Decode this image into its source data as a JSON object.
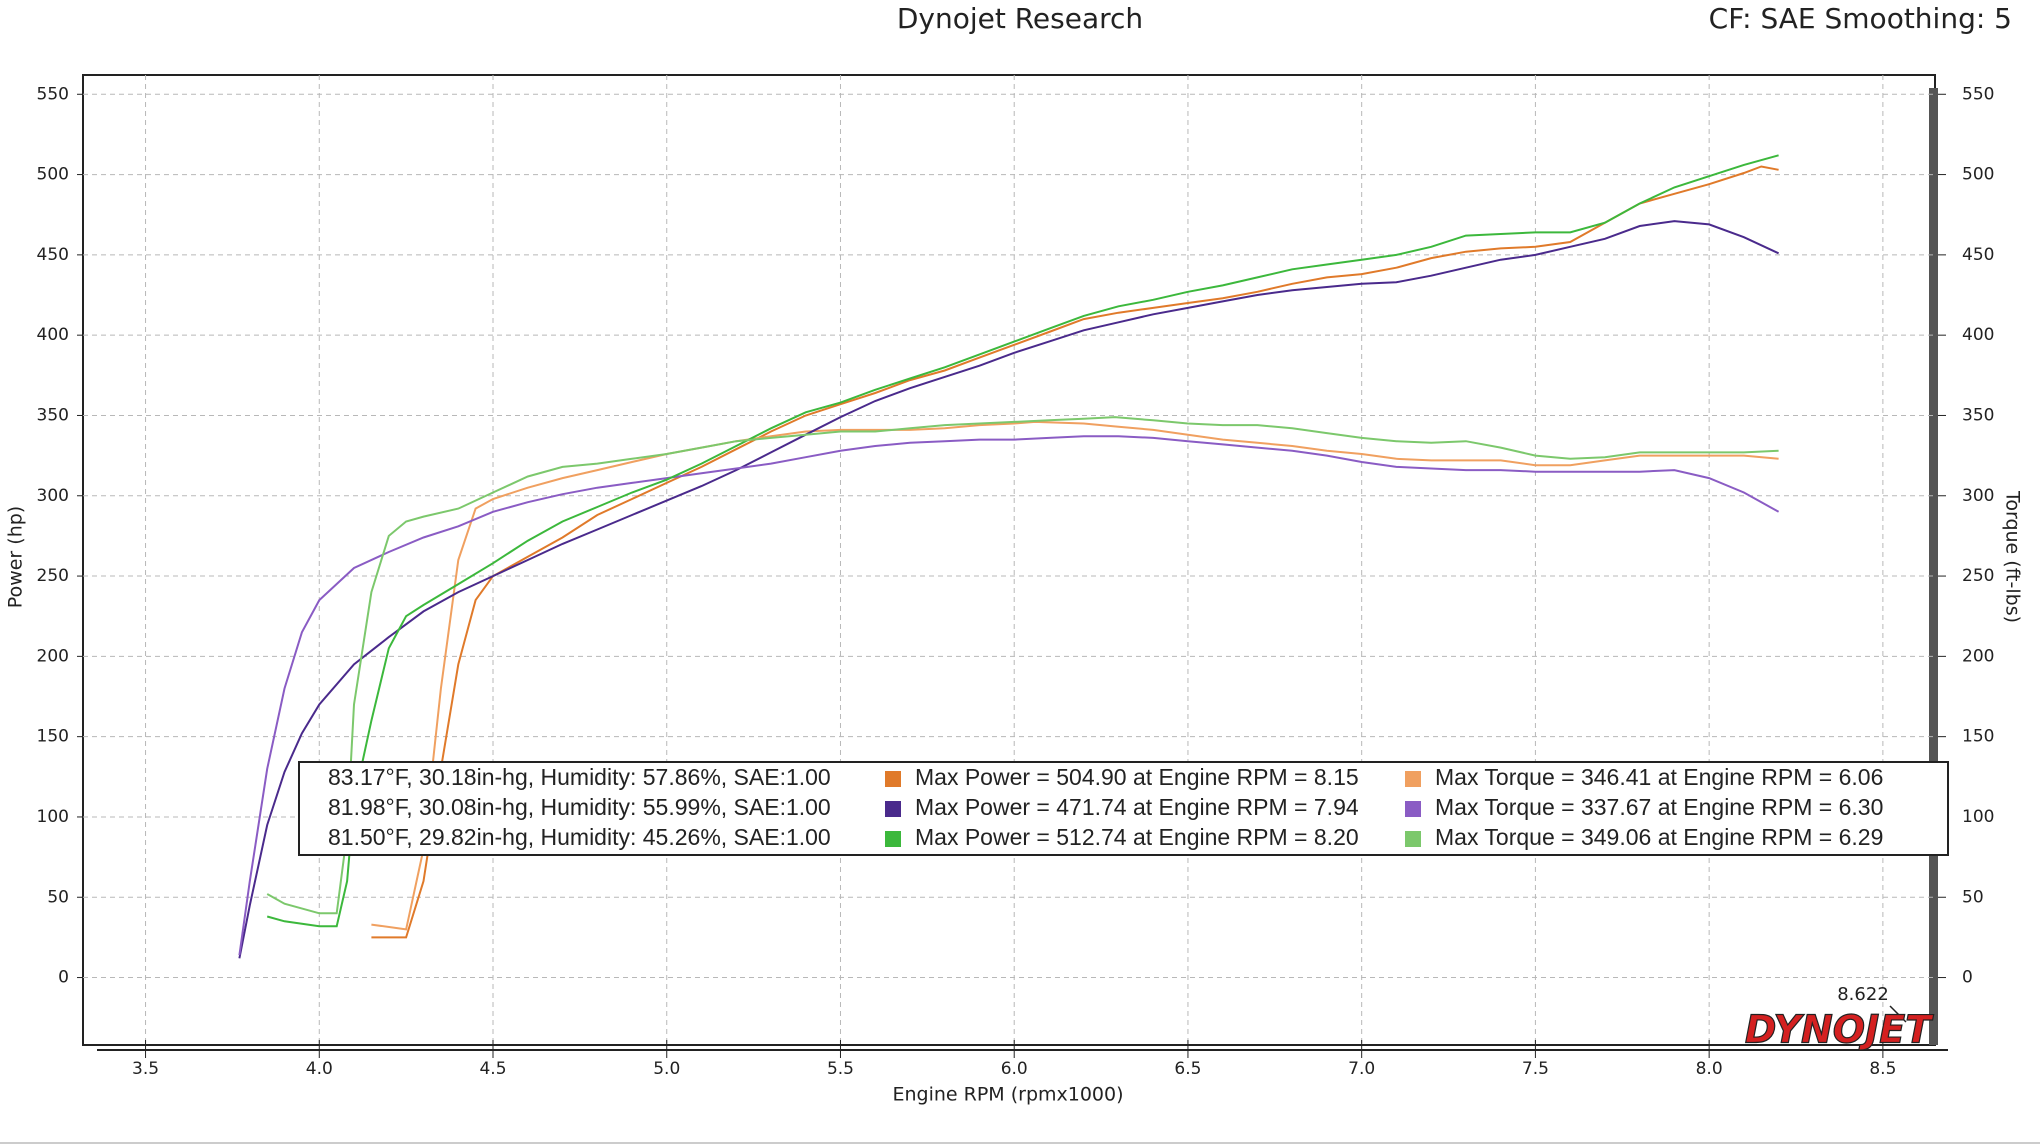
{
  "chart_data": {
    "type": "line",
    "title": "Dynojet Research",
    "subtitle": "CF: SAE Smoothing: 5",
    "x_label": "Engine RPM (rpmx1000)",
    "y_label": "Power (hp)",
    "y2_label": "Torque (ft-lbs)",
    "annotation": "8.622",
    "logo": "DYNOJET",
    "grid": true,
    "xlim": [
      3.32,
      8.65
    ],
    "xticks": [
      {
        "value": 3.5,
        "label": "3.5"
      },
      {
        "value": 4,
        "label": "4.0"
      },
      {
        "value": 4.5,
        "label": "4.5"
      },
      {
        "value": 5,
        "label": "5.0"
      },
      {
        "value": 5.5,
        "label": "5.5"
      },
      {
        "value": 6,
        "label": "6.0"
      },
      {
        "value": 6.5,
        "label": "6.5"
      },
      {
        "value": 7,
        "label": "7.0"
      },
      {
        "value": 7.5,
        "label": "7.5"
      },
      {
        "value": 8,
        "label": "8.0"
      },
      {
        "value": 8.5,
        "label": "8.5"
      }
    ],
    "ylim": [
      -42,
      562
    ],
    "yticks": [
      0,
      50,
      100,
      150,
      200,
      250,
      300,
      350,
      400,
      450,
      500,
      550
    ],
    "y2lim": [
      -42,
      562
    ],
    "y2ticks": [
      0,
      50,
      100,
      150,
      200,
      250,
      300,
      350,
      400,
      450,
      500,
      550
    ],
    "conditions": [
      "83.17°F, 30.18in-hg, Humidity: 57.86%, SAE:1.00",
      "81.98°F, 30.08in-hg, Humidity: 55.99%, SAE:1.00",
      "81.50°F, 29.82in-hg, Humidity: 45.26%, SAE:1.00"
    ],
    "series": [
      {
        "name": "Max Power = 504.90 at Engine RPM = 8.15",
        "color": "#e07a2a",
        "x": [
          4.15,
          4.25,
          4.3,
          4.35,
          4.4,
          4.45,
          4.5,
          4.6,
          4.7,
          4.8,
          4.9,
          5.0,
          5.1,
          5.2,
          5.3,
          5.4,
          5.5,
          5.6,
          5.7,
          5.8,
          5.9,
          6.0,
          6.1,
          6.2,
          6.3,
          6.4,
          6.5,
          6.6,
          6.7,
          6.8,
          6.9,
          7.0,
          7.1,
          7.2,
          7.3,
          7.4,
          7.5,
          7.6,
          7.7,
          7.8,
          7.9,
          8.0,
          8.1,
          8.15,
          8.2
        ],
        "values": [
          25,
          25,
          60,
          130,
          195,
          235,
          250,
          262,
          274,
          288,
          298,
          308,
          318,
          329,
          340,
          350,
          357,
          364,
          372,
          378,
          386,
          394,
          402,
          410,
          414,
          417,
          420,
          423,
          427,
          432,
          436,
          438,
          442,
          448,
          452,
          454,
          455,
          458,
          470,
          482,
          488,
          494,
          501,
          505,
          503
        ]
      },
      {
        "name": "Max Torque = 346.41 at Engine RPM = 6.06",
        "color": "#f0a060",
        "axis": "y2",
        "x": [
          4.15,
          4.25,
          4.3,
          4.35,
          4.4,
          4.45,
          4.5,
          4.6,
          4.7,
          4.8,
          4.9,
          5.0,
          5.1,
          5.2,
          5.3,
          5.4,
          5.5,
          5.6,
          5.7,
          5.8,
          5.9,
          6.0,
          6.06,
          6.2,
          6.3,
          6.4,
          6.5,
          6.6,
          6.7,
          6.8,
          6.9,
          7.0,
          7.1,
          7.2,
          7.3,
          7.4,
          7.5,
          7.6,
          7.7,
          7.8,
          7.9,
          8.0,
          8.1,
          8.2
        ],
        "values": [
          33,
          30,
          80,
          180,
          260,
          292,
          298,
          305,
          311,
          316,
          321,
          326,
          330,
          334,
          337,
          340,
          341,
          341,
          341,
          342,
          344,
          345,
          346,
          345,
          343,
          341,
          338,
          335,
          333,
          331,
          328,
          326,
          323,
          322,
          322,
          322,
          319,
          319,
          322,
          325,
          325,
          325,
          325,
          323
        ]
      },
      {
        "name": "Max Power = 471.74 at Engine RPM = 7.94",
        "color": "#4a2a8c",
        "x": [
          3.77,
          3.8,
          3.85,
          3.9,
          3.95,
          4.0,
          4.1,
          4.2,
          4.3,
          4.4,
          4.5,
          4.6,
          4.7,
          4.8,
          4.9,
          5.0,
          5.1,
          5.2,
          5.3,
          5.4,
          5.5,
          5.6,
          5.7,
          5.8,
          5.9,
          6.0,
          6.1,
          6.2,
          6.3,
          6.4,
          6.5,
          6.6,
          6.7,
          6.8,
          6.9,
          7.0,
          7.1,
          7.2,
          7.3,
          7.4,
          7.5,
          7.6,
          7.7,
          7.8,
          7.9,
          8.0,
          8.1,
          8.2
        ],
        "values": [
          12,
          45,
          95,
          128,
          152,
          170,
          195,
          212,
          228,
          240,
          250,
          260,
          270,
          279,
          288,
          297,
          306,
          316,
          327,
          338,
          349,
          359,
          367,
          374,
          381,
          389,
          396,
          403,
          408,
          413,
          417,
          421,
          425,
          428,
          430,
          432,
          433,
          437,
          442,
          447,
          450,
          455,
          460,
          468,
          471,
          469,
          461,
          451
        ]
      },
      {
        "name": "Max Torque = 337.67 at Engine RPM = 6.30",
        "color": "#8a5cc4",
        "axis": "y2",
        "x": [
          3.77,
          3.8,
          3.85,
          3.9,
          3.95,
          4.0,
          4.1,
          4.2,
          4.3,
          4.4,
          4.5,
          4.6,
          4.7,
          4.8,
          4.9,
          5.0,
          5.1,
          5.2,
          5.3,
          5.4,
          5.5,
          5.6,
          5.7,
          5.8,
          5.9,
          6.0,
          6.1,
          6.2,
          6.3,
          6.4,
          6.5,
          6.6,
          6.7,
          6.8,
          6.9,
          7.0,
          7.1,
          7.2,
          7.3,
          7.4,
          7.5,
          7.6,
          7.7,
          7.8,
          7.9,
          8.0,
          8.1,
          8.2
        ],
        "values": [
          14,
          60,
          130,
          180,
          215,
          235,
          255,
          265,
          274,
          281,
          290,
          296,
          301,
          305,
          308,
          311,
          314,
          317,
          320,
          324,
          328,
          331,
          333,
          334,
          335,
          335,
          336,
          337,
          337,
          336,
          334,
          332,
          330,
          328,
          325,
          321,
          318,
          317,
          316,
          316,
          315,
          315,
          315,
          315,
          316,
          311,
          302,
          290
        ]
      },
      {
        "name": "Max Power = 512.74 at Engine RPM = 8.20",
        "color": "#3cb83c",
        "x": [
          3.85,
          3.9,
          4.0,
          4.05,
          4.08,
          4.1,
          4.15,
          4.2,
          4.25,
          4.3,
          4.4,
          4.5,
          4.6,
          4.7,
          4.8,
          4.9,
          5.0,
          5.1,
          5.2,
          5.3,
          5.4,
          5.5,
          5.6,
          5.7,
          5.8,
          5.9,
          6.0,
          6.1,
          6.2,
          6.3,
          6.4,
          6.5,
          6.6,
          6.7,
          6.8,
          6.9,
          7.0,
          7.1,
          7.2,
          7.3,
          7.4,
          7.5,
          7.6,
          7.7,
          7.8,
          7.9,
          8.0,
          8.1,
          8.2
        ],
        "values": [
          38,
          35,
          32,
          32,
          60,
          110,
          160,
          205,
          225,
          232,
          245,
          258,
          272,
          284,
          293,
          302,
          310,
          320,
          331,
          342,
          352,
          358,
          366,
          373,
          380,
          388,
          396,
          404,
          412,
          418,
          422,
          427,
          431,
          436,
          441,
          444,
          447,
          450,
          455,
          462,
          463,
          464,
          464,
          470,
          482,
          492,
          499,
          506,
          512
        ]
      },
      {
        "name": "Max Torque = 349.06 at Engine RPM = 6.29",
        "color": "#7cc86c",
        "axis": "y2",
        "x": [
          3.85,
          3.9,
          4.0,
          4.05,
          4.08,
          4.1,
          4.15,
          4.2,
          4.25,
          4.3,
          4.4,
          4.5,
          4.6,
          4.7,
          4.8,
          4.9,
          5.0,
          5.1,
          5.2,
          5.3,
          5.4,
          5.5,
          5.6,
          5.7,
          5.8,
          5.9,
          6.0,
          6.1,
          6.2,
          6.29,
          6.4,
          6.5,
          6.6,
          6.7,
          6.8,
          6.9,
          7.0,
          7.1,
          7.2,
          7.3,
          7.4,
          7.5,
          7.6,
          7.7,
          7.8,
          7.9,
          8.0,
          8.1,
          8.2
        ],
        "values": [
          52,
          46,
          40,
          40,
          90,
          170,
          240,
          275,
          284,
          287,
          292,
          302,
          312,
          318,
          320,
          323,
          326,
          330,
          334,
          336,
          338,
          340,
          340,
          342,
          344,
          345,
          346,
          347,
          348,
          349,
          347,
          345,
          344,
          344,
          342,
          339,
          336,
          334,
          333,
          334,
          330,
          325,
          323,
          324,
          327,
          327,
          327,
          327,
          328
        ]
      }
    ]
  }
}
